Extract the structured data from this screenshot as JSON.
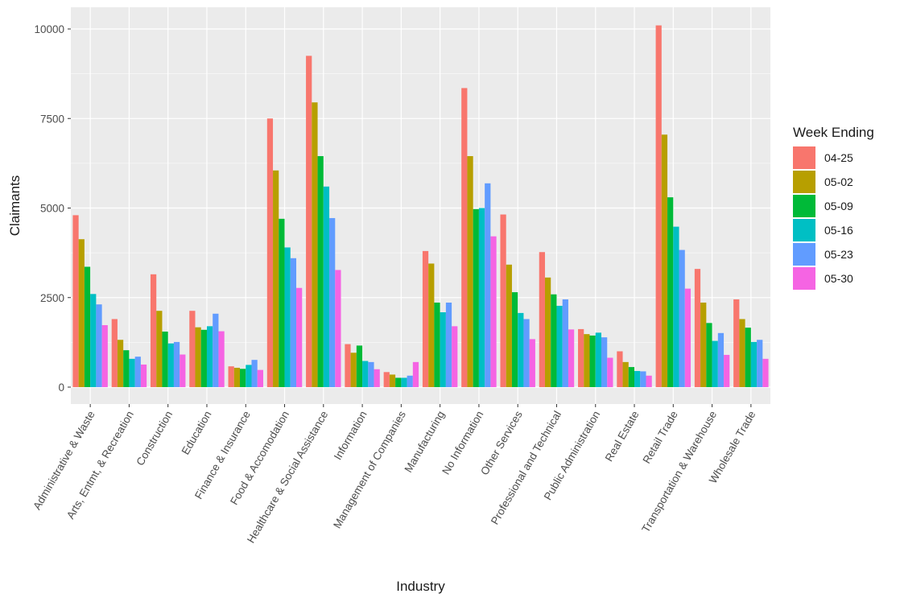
{
  "chart_data": {
    "type": "bar",
    "xlabel": "Industry",
    "ylabel": "Claimants",
    "ylim": [
      -500,
      10500
    ],
    "yticks": [
      0,
      2500,
      5000,
      7500,
      10000
    ],
    "grid": true,
    "legend_position": "right",
    "legend_title": "Week Ending",
    "categories": [
      "Administrative & Waste",
      "Arts, Entmt, & Recreation",
      "Construction",
      "Education",
      "Finance & Insurance",
      "Food & Accomodation",
      "Healthcare & Social Assistance",
      "Information",
      "Management of Companies",
      "Manufacturing",
      "No Information",
      "Other Services",
      "Professional and Technical",
      "Public Administration",
      "Real Estate",
      "Retail Trade",
      "Transportation & Warehouse",
      "Wholesale Trade"
    ],
    "series": [
      {
        "name": "04-25",
        "color": "#F8766D",
        "values": [
          4800,
          1900,
          3150,
          2130,
          580,
          7500,
          9250,
          1200,
          420,
          3800,
          8350,
          4820,
          3770,
          1620,
          1000,
          10100,
          3300,
          2450
        ]
      },
      {
        "name": "05-02",
        "color": "#B79F00",
        "values": [
          4130,
          1320,
          2130,
          1670,
          540,
          6050,
          7950,
          960,
          350,
          3450,
          6450,
          3420,
          3060,
          1480,
          700,
          7050,
          2360,
          1900
        ]
      },
      {
        "name": "05-09",
        "color": "#00BA38",
        "values": [
          3360,
          1030,
          1550,
          1600,
          510,
          4700,
          6450,
          1160,
          260,
          2360,
          4970,
          2650,
          2590,
          1440,
          560,
          5300,
          1790,
          1660
        ]
      },
      {
        "name": "05-16",
        "color": "#00BFC4",
        "values": [
          2600,
          790,
          1220,
          1700,
          620,
          3900,
          5600,
          730,
          260,
          2090,
          5000,
          2070,
          2270,
          1520,
          450,
          4480,
          1290,
          1260
        ]
      },
      {
        "name": "05-23",
        "color": "#619CFF",
        "values": [
          2310,
          850,
          1260,
          2050,
          760,
          3600,
          4720,
          700,
          320,
          2360,
          5690,
          1900,
          2450,
          1390,
          440,
          3830,
          1510,
          1320
        ]
      },
      {
        "name": "05-30",
        "color": "#F564E3",
        "values": [
          1730,
          630,
          910,
          1560,
          480,
          2770,
          3270,
          500,
          700,
          1700,
          4210,
          1340,
          1610,
          820,
          320,
          2750,
          900,
          790
        ]
      }
    ]
  }
}
